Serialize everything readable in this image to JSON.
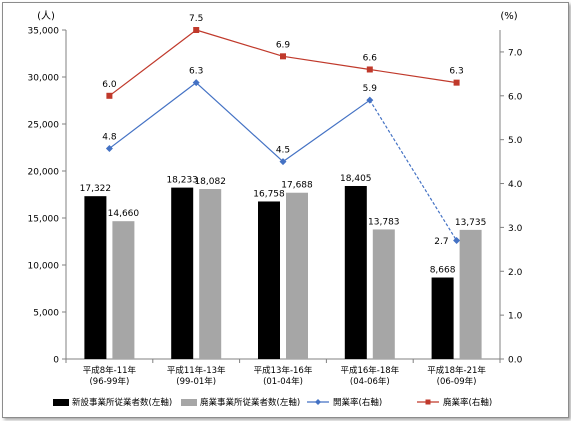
{
  "chart_data": {
    "type": "bar",
    "categories": [
      [
        "平成8年-11年",
        "(96-99年)"
      ],
      [
        "平成11年-13年",
        "(99-01年)"
      ],
      [
        "平成13年-16年",
        "(01-04年)"
      ],
      [
        "平成16年-18年",
        "(04-06年)"
      ],
      [
        "平成18年-21年",
        "(06-09年)"
      ]
    ],
    "left_axis": {
      "unit_label": "(人)",
      "ylim": [
        0,
        35000
      ],
      "ticks": [
        "0",
        "5,000",
        "10,000",
        "15,000",
        "20,000",
        "25,000",
        "30,000",
        "35,000"
      ]
    },
    "right_axis": {
      "unit_label": "(%)",
      "ylim": [
        0,
        7.5
      ],
      "ticks": [
        "0.0",
        "1.0",
        "2.0",
        "3.0",
        "4.0",
        "5.0",
        "6.0",
        "7.0"
      ]
    },
    "bar_series": [
      {
        "name": "新設事業所従業者数(左軸)",
        "color": "#000000",
        "values": [
          17322,
          18233,
          16758,
          18405,
          8668
        ],
        "labels": [
          "17,322",
          "18,233",
          "16,758",
          "18,405",
          "8,668"
        ]
      },
      {
        "name": "廃業事業所従業者数(左軸)",
        "color": "#a6a6a6",
        "values": [
          14660,
          18082,
          17688,
          13783,
          13735
        ],
        "labels": [
          "14,660",
          "18,082",
          "17,688",
          "13,783",
          "13,735"
        ]
      }
    ],
    "line_series": [
      {
        "name": "開業率(右軸)",
        "color": "#4472c4",
        "marker": "diamond",
        "values": [
          4.8,
          6.3,
          4.5,
          5.9,
          2.7
        ],
        "labels": [
          "4.8",
          "6.3",
          "4.5",
          "5.9",
          "2.7"
        ],
        "last_segment_dashed": true
      },
      {
        "name": "廃業率(右軸)",
        "color": "#c0392b",
        "marker": "square",
        "values": [
          6.0,
          7.5,
          6.9,
          6.6,
          6.3
        ],
        "labels": [
          "6.0",
          "7.5",
          "6.9",
          "6.6",
          "6.3"
        ],
        "last_segment_dashed": false
      }
    ],
    "grid": false,
    "legend_position": "bottom"
  }
}
